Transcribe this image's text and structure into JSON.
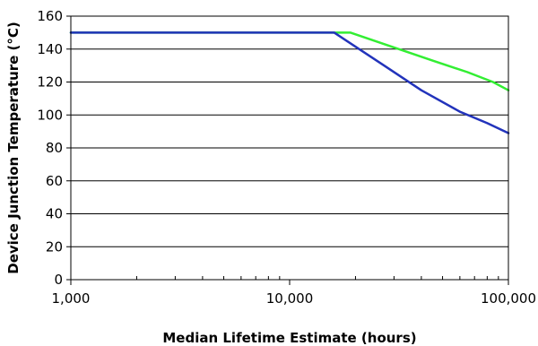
{
  "chart_data": {
    "type": "line",
    "xlabel": "Median Lifetime Estimate (hours)",
    "ylabel": "Device Junction Temperature (°C)",
    "x_scale": "log",
    "xlim": [
      1000,
      100000
    ],
    "ylim": [
      0,
      160
    ],
    "x_ticks": [
      1000,
      10000,
      100000
    ],
    "x_tick_labels": [
      "1,000",
      "10,000",
      "100,000"
    ],
    "y_ticks": [
      0,
      20,
      40,
      60,
      80,
      100,
      120,
      140,
      160
    ],
    "y_tick_labels": [
      "0",
      "20",
      "40",
      "60",
      "80",
      "100",
      "120",
      "140",
      "160"
    ],
    "grid": "horizontal",
    "legend": "none",
    "series": [
      {
        "color": "#33ee33",
        "x": [
          1000,
          19000,
          30000,
          45000,
          65000,
          85000,
          100000
        ],
        "y": [
          150,
          150,
          141,
          133,
          126,
          120,
          115
        ]
      },
      {
        "color": "#2233bb",
        "x": [
          1000,
          16000,
          27000,
          40000,
          60000,
          80000,
          100000
        ],
        "y": [
          150,
          150,
          130,
          115,
          102,
          95,
          89
        ]
      }
    ]
  }
}
